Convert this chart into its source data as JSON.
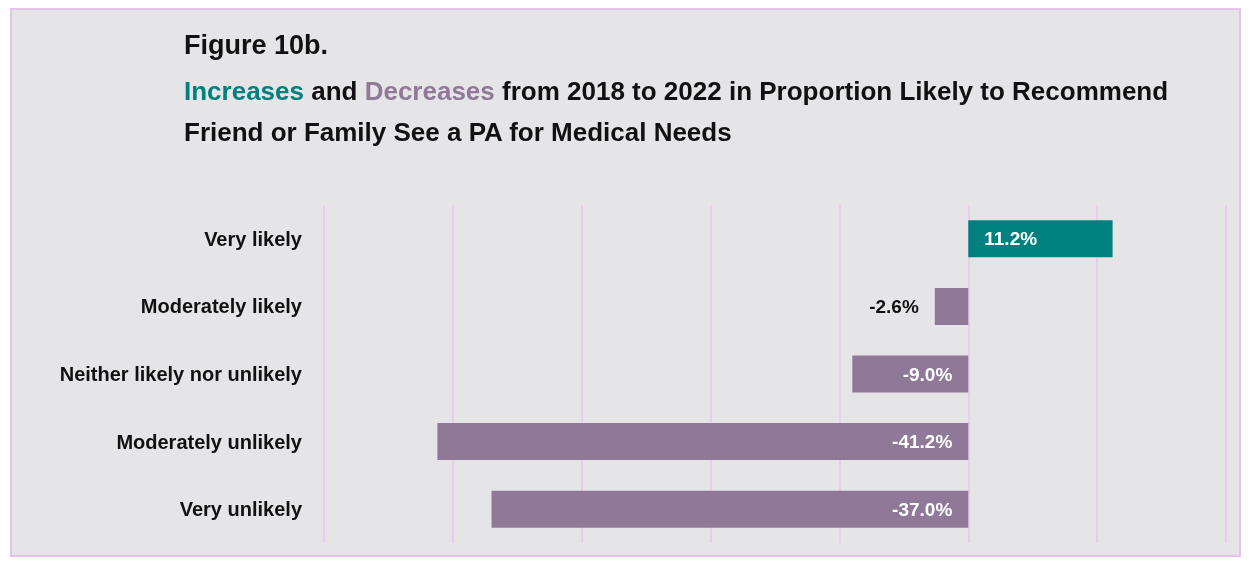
{
  "chart_data": {
    "type": "bar",
    "orientation": "horizontal",
    "title": "Figure 10b.",
    "subtitle": "Increases and Decreases from 2018 to 2022 in Proportion Likely to Recommend Friend or Family See a PA for Medical Needs",
    "categories": [
      "Very likely",
      "Moderately likely",
      "Neither likely nor unlikely",
      "Moderately unlikely",
      "Very unlikely"
    ],
    "values": [
      11.2,
      -2.6,
      -9.0,
      -41.2,
      -37.0
    ],
    "colors": [
      "#00807f",
      "#8f7898",
      "#8f7898",
      "#8f7898",
      "#8f7898"
    ],
    "value_labels": [
      "11.2%",
      "-2.6%",
      "-9.0%",
      "-41.2%",
      "-37.0%"
    ],
    "xlim": [
      -50,
      20
    ],
    "xticks": [
      {
        "value": -50,
        "label": null
      },
      {
        "value": -40,
        "label": null
      },
      {
        "value": -30,
        "label": null
      },
      {
        "value": -20,
        "label": null
      },
      {
        "value": -10,
        "label": null
      },
      {
        "value": 0,
        "label": null
      },
      {
        "value": 10,
        "label": null
      },
      {
        "value": 20,
        "label": null
      }
    ],
    "grid": "x",
    "tick_labels": "y"
  }
}
